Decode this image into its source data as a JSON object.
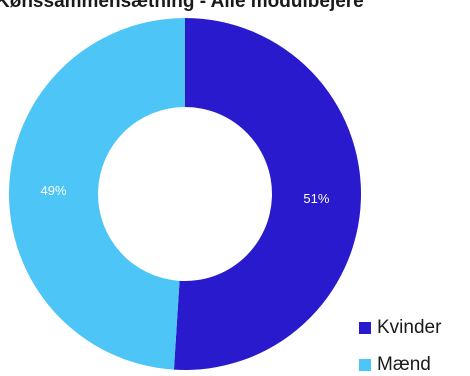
{
  "chart_data": {
    "type": "pie",
    "variant": "donut",
    "title": "Kønssammensætning - Alle modulbejere",
    "categories": [
      "Kvinder",
      "Mænd"
    ],
    "values": [
      51,
      49
    ],
    "data_labels": [
      "51%",
      "49%"
    ],
    "colors": [
      "#2a1acd",
      "#4dc5f7"
    ],
    "legend_position": "bottom-right"
  }
}
